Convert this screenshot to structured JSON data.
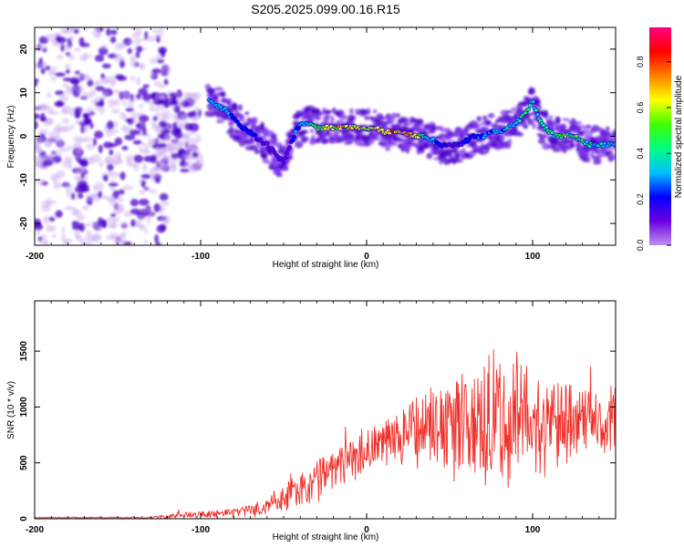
{
  "title": "S205.2025.099.00.16.R15",
  "colors": {
    "spectro_low": "#c9a8f2",
    "spectro_mid": "#4b00c8",
    "snr_line": "#f0302a"
  },
  "chart_data": [
    {
      "type": "heatmap",
      "xlabel": "Height of straight line (km)",
      "ylabel": "Frequency (Hz)",
      "xlim": [
        -200,
        150
      ],
      "ylim": [
        -25,
        25
      ],
      "xticks": [
        -200,
        -100,
        0,
        100
      ],
      "yticks": [
        -20,
        -10,
        0,
        10,
        20
      ],
      "colorbar": {
        "label": "Normalized spectral amplitude",
        "range": [
          0,
          0.95
        ],
        "ticks": [
          "0.0",
          "0.2",
          "0.4",
          "0.6",
          "0.8"
        ],
        "colormap": [
          "#c090f0",
          "#6a00e0",
          "#0000ff",
          "#00c0ff",
          "#00ff80",
          "#40ff00",
          "#ffff00",
          "#ff8000",
          "#ff0000",
          "#ff0080"
        ]
      },
      "ridge": {
        "x": [
          -95,
          -90,
          -85,
          -80,
          -75,
          -70,
          -65,
          -60,
          -55,
          -50,
          -45,
          -40,
          -35,
          -30,
          -25,
          -20,
          -15,
          -10,
          -5,
          0,
          5,
          10,
          15,
          20,
          25,
          30,
          35,
          40,
          45,
          50,
          55,
          60,
          65,
          70,
          75,
          80,
          85,
          90,
          95,
          100,
          105,
          110,
          115,
          120,
          125,
          130,
          135,
          140,
          145,
          150
        ],
        "freq": [
          8,
          7,
          6,
          4,
          2,
          1,
          -1,
          -2,
          -4,
          -6,
          -1,
          3,
          3,
          2,
          2,
          2,
          2,
          2,
          2,
          2,
          2,
          1,
          1,
          1,
          0.5,
          0,
          0,
          -1,
          -2,
          -2,
          -2,
          -1,
          0,
          0,
          1,
          1,
          2,
          3,
          5,
          8,
          3,
          1,
          0,
          0,
          0,
          -1,
          -2,
          -2,
          -2,
          -2
        ],
        "amplitude": [
          0.3,
          0.35,
          0.3,
          0.25,
          0.2,
          0.2,
          0.15,
          0.1,
          0.1,
          0.1,
          0.2,
          0.3,
          0.4,
          0.5,
          0.6,
          0.65,
          0.7,
          0.7,
          0.65,
          0.7,
          0.7,
          0.65,
          0.75,
          0.8,
          0.7,
          0.7,
          0.4,
          0.3,
          0.2,
          0.15,
          0.15,
          0.2,
          0.25,
          0.3,
          0.3,
          0.3,
          0.35,
          0.4,
          0.5,
          0.45,
          0.4,
          0.45,
          0.5,
          0.55,
          0.5,
          0.45,
          0.45,
          0.4,
          0.35,
          0.35
        ]
      },
      "scatter_regions": [
        {
          "x_range": [
            -200,
            -120
          ],
          "freq_range": [
            -25,
            25
          ],
          "amplitude_range": [
            0.0,
            0.1
          ]
        },
        {
          "x_range": [
            -130,
            -100
          ],
          "freq_range": [
            -8,
            10
          ],
          "amplitude_range": [
            0.05,
            0.15
          ]
        }
      ]
    },
    {
      "type": "line",
      "xlabel": "Height of straight line (km)",
      "ylabel": "SNR (10 * v/v)",
      "xlim": [
        -200,
        150
      ],
      "ylim": [
        0,
        1950
      ],
      "xticks": [
        -200,
        -100,
        0,
        100
      ],
      "yticks": [
        0,
        500,
        1000,
        1500
      ],
      "envelope": {
        "x": [
          -200,
          -180,
          -160,
          -140,
          -130,
          -120,
          -110,
          -100,
          -90,
          -80,
          -70,
          -60,
          -50,
          -40,
          -30,
          -20,
          -10,
          0,
          10,
          20,
          30,
          40,
          50,
          60,
          70,
          80,
          90,
          100,
          110,
          120,
          130,
          140,
          150
        ],
        "mean": [
          10,
          10,
          10,
          10,
          12,
          20,
          35,
          40,
          45,
          50,
          70,
          110,
          180,
          260,
          340,
          430,
          520,
          600,
          650,
          720,
          780,
          820,
          850,
          860,
          870,
          880,
          900,
          880,
          850,
          860,
          870,
          860,
          880
        ],
        "amplitude": [
          6,
          6,
          6,
          6,
          8,
          20,
          30,
          35,
          35,
          40,
          50,
          80,
          120,
          150,
          180,
          200,
          200,
          200,
          220,
          260,
          300,
          380,
          450,
          520,
          560,
          600,
          560,
          500,
          420,
          350,
          300,
          300,
          300
        ]
      }
    }
  ]
}
